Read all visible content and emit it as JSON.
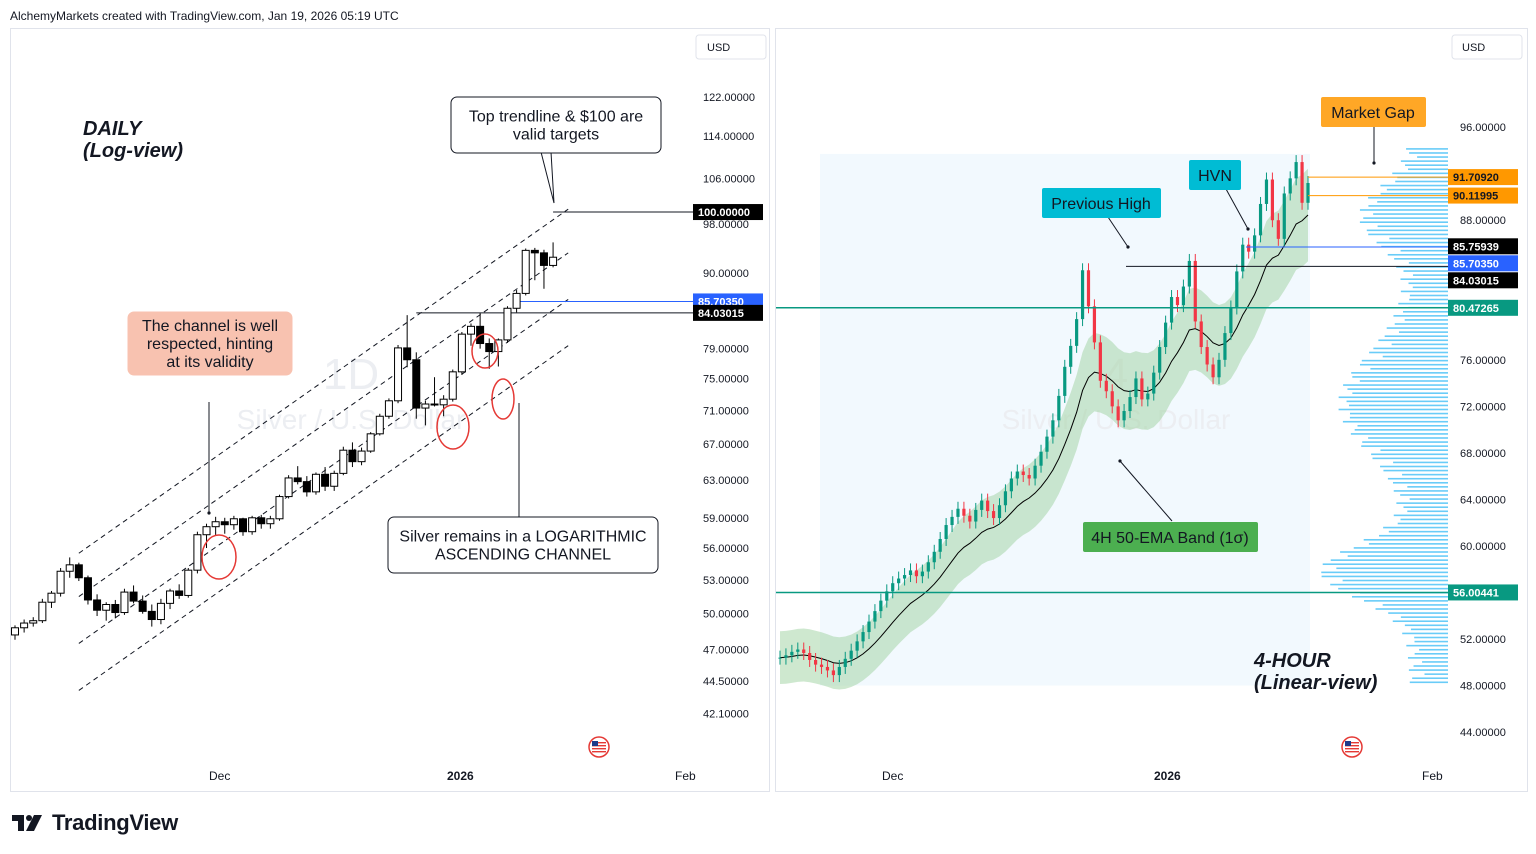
{
  "header": {
    "text": "AlchemyMarkets created with TradingView.com, Jan 19, 2026 05:19 UTC"
  },
  "footer": {
    "brand": "TradingView"
  },
  "colors": {
    "up": "#ffffff",
    "down": "#000000",
    "wick": "#000000",
    "price_blue": "#2962ff",
    "band": "#a5d6a7",
    "ema": "#000000",
    "hline_teal": "#089981",
    "profile": "#4fc3f7",
    "orange": "#ff9800",
    "teal_label": "#00bcd4",
    "callout_salmon": "#f8c2b0",
    "green_label": "#4caf50"
  },
  "chart_data": [
    {
      "id": "left",
      "type": "candlestick",
      "title": "Silver / U.S. Dollar",
      "interval_watermark": "1D",
      "scale": "log",
      "currency": "USD",
      "ylim": [
        40,
        128
      ],
      "y_ticks": [
        "122.00000",
        "114.00000",
        "106.00000",
        "98.00000",
        "90.00000",
        "79.00000",
        "75.00000",
        "71.00000",
        "67.00000",
        "63.00000",
        "59.00000",
        "56.00000",
        "53.00000",
        "50.00000",
        "47.00000",
        "44.50000",
        "42.10000"
      ],
      "x_labels": [
        "Dec",
        "2026",
        "Feb"
      ],
      "candles": [
        [
          48.2,
          49.0,
          47.8,
          48.8
        ],
        [
          48.8,
          49.5,
          48.4,
          49.2
        ],
        [
          49.2,
          49.7,
          48.9,
          49.4
        ],
        [
          49.4,
          51.3,
          49.2,
          51.0
        ],
        [
          51.0,
          52.0,
          50.5,
          51.8
        ],
        [
          51.8,
          54.1,
          51.5,
          53.8
        ],
        [
          53.8,
          55.1,
          53.2,
          54.4
        ],
        [
          54.4,
          54.6,
          52.9,
          53.2
        ],
        [
          53.2,
          53.4,
          50.8,
          51.2
        ],
        [
          51.2,
          51.7,
          49.8,
          50.3
        ],
        [
          50.3,
          51.0,
          49.4,
          50.8
        ],
        [
          50.8,
          51.2,
          49.6,
          50.1
        ],
        [
          50.1,
          52.2,
          49.9,
          51.9
        ],
        [
          51.9,
          52.5,
          50.9,
          51.1
        ],
        [
          51.1,
          51.6,
          50.0,
          50.2
        ],
        [
          50.2,
          50.8,
          48.9,
          49.5
        ],
        [
          49.5,
          51.3,
          49.1,
          50.9
        ],
        [
          50.9,
          52.2,
          50.4,
          52.0
        ],
        [
          52.0,
          52.6,
          51.3,
          51.6
        ],
        [
          51.6,
          54.1,
          51.4,
          53.9
        ],
        [
          53.9,
          57.6,
          53.6,
          57.3
        ],
        [
          57.3,
          58.4,
          56.0,
          58.1
        ],
        [
          58.1,
          59.1,
          57.2,
          58.6
        ],
        [
          58.6,
          59.0,
          57.4,
          58.3
        ],
        [
          58.3,
          59.2,
          57.8,
          58.9
        ],
        [
          58.9,
          59.0,
          57.2,
          57.6
        ],
        [
          57.6,
          59.2,
          57.3,
          59.0
        ],
        [
          59.0,
          59.3,
          57.9,
          58.4
        ],
        [
          58.4,
          59.2,
          57.9,
          58.9
        ],
        [
          58.9,
          61.4,
          58.7,
          61.2
        ],
        [
          61.2,
          63.5,
          61.0,
          63.2
        ],
        [
          63.2,
          64.5,
          62.5,
          62.8
        ],
        [
          62.8,
          63.4,
          61.2,
          61.7
        ],
        [
          61.7,
          63.8,
          61.4,
          63.6
        ],
        [
          63.6,
          64.4,
          61.8,
          62.3
        ],
        [
          62.3,
          64.0,
          61.8,
          63.7
        ],
        [
          63.7,
          66.7,
          63.5,
          66.3
        ],
        [
          66.3,
          67.2,
          64.4,
          65.0
        ],
        [
          65.0,
          66.6,
          64.6,
          66.2
        ],
        [
          66.2,
          68.4,
          66.0,
          68.2
        ],
        [
          68.2,
          70.6,
          68.0,
          70.3
        ],
        [
          70.3,
          72.5,
          70.0,
          72.2
        ],
        [
          72.2,
          79.5,
          71.9,
          79.1
        ],
        [
          79.1,
          83.7,
          76.5,
          77.5
        ],
        [
          77.5,
          78.5,
          70.0,
          71.3
        ],
        [
          71.3,
          72.2,
          69.2,
          71.8
        ],
        [
          71.8,
          75.2,
          71.5,
          71.7
        ],
        [
          71.7,
          72.9,
          70.3,
          72.4
        ],
        [
          72.4,
          76.2,
          72.1,
          75.9
        ],
        [
          75.9,
          81.3,
          75.5,
          81.0
        ],
        [
          81.0,
          82.5,
          79.4,
          82.1
        ],
        [
          82.1,
          84.0,
          79.0,
          79.7
        ],
        [
          79.7,
          80.4,
          76.3,
          78.6
        ],
        [
          78.6,
          80.4,
          76.6,
          80.2
        ],
        [
          80.2,
          85.0,
          79.8,
          84.7
        ],
        [
          84.7,
          87.4,
          84.1,
          86.9
        ],
        [
          86.9,
          93.9,
          86.6,
          93.6
        ],
        [
          93.6,
          94.0,
          88.9,
          93.2
        ],
        [
          93.2,
          93.7,
          87.6,
          91.2
        ],
        [
          91.2,
          94.9,
          90.9,
          92.5
        ]
      ],
      "levels": [
        {
          "value": 100,
          "label": "100.00000",
          "style": "black"
        },
        {
          "value": 85.7035,
          "label": "85.70350",
          "style": "blue"
        },
        {
          "value": 84.03015,
          "label": "84.03015",
          "style": "black"
        }
      ],
      "annotations": {
        "title": [
          "DAILY",
          "(Log-view)"
        ],
        "callout_top": [
          "Top trendline & $100 are",
          "valid targets"
        ],
        "callout_left": [
          "The channel is well",
          "respected, hinting",
          "at its validity"
        ],
        "callout_bottom": [
          "Silver remains in a LOGARITHMIC",
          "ASCENDING CHANNEL"
        ]
      }
    },
    {
      "id": "right",
      "type": "candlestick",
      "title": "Silver / U.S. Dollar",
      "interval_watermark": "4",
      "scale": "linear",
      "currency": "USD",
      "ylim": [
        41,
        101
      ],
      "y_ticks": [
        "96.00000",
        "88.00000",
        "76.00000",
        "72.00000",
        "68.00000",
        "64.00000",
        "60.00000",
        "52.00000",
        "48.00000",
        "44.00000"
      ],
      "x_labels": [
        "Dec",
        "2026",
        "Feb"
      ],
      "series_note": "4H close path with 50-EMA and 1-sigma band",
      "closes": [
        50.4,
        50.6,
        50.9,
        51.1,
        50.8,
        50.2,
        49.8,
        49.6,
        49.3,
        48.9,
        49.6,
        50.3,
        51.0,
        51.8,
        52.6,
        53.5,
        54.4,
        55.3,
        56.1,
        56.8,
        57.2,
        57.5,
        57.9,
        57.4,
        57.8,
        58.6,
        59.5,
        60.6,
        61.8,
        62.5,
        63.2,
        62.6,
        62.1,
        63.1,
        63.9,
        63.0,
        62.4,
        63.5,
        64.7,
        65.8,
        66.4,
        66.1,
        65.8,
        66.9,
        68.1,
        69.4,
        70.8,
        72.9,
        75.4,
        77.2,
        79.5,
        83.7,
        80.6,
        77.5,
        74.2,
        73.3,
        72.0,
        70.8,
        71.6,
        72.8,
        74.4,
        72.6,
        73.1,
        74.9,
        77.1,
        79.2,
        81.4,
        80.7,
        82.3,
        84.5,
        79.3,
        77.1,
        75.6,
        74.5,
        76.0,
        78.3,
        80.5,
        83.6,
        85.9,
        85.3,
        86.7,
        89.4,
        91.5,
        88.0,
        86.4,
        90.3,
        91.6,
        93.0,
        89.5,
        91.2
      ],
      "levels": [
        {
          "value": 91.7092,
          "label": "91.70920",
          "style": "orange"
        },
        {
          "value": 90.11995,
          "label": "90.11995",
          "style": "orange"
        },
        {
          "value": 85.75939,
          "label": "85.75939",
          "style": "black"
        },
        {
          "value": 85.7035,
          "label": "85.70350",
          "style": "blue"
        },
        {
          "value": 84.03015,
          "label": "84.03015",
          "style": "black"
        },
        {
          "value": 80.47265,
          "label": "80.47265",
          "style": "teal"
        },
        {
          "value": 56.00441,
          "label": "56.00441",
          "style": "teal"
        }
      ],
      "annotations": {
        "market_gap": "Market Gap",
        "hvn": "HVN",
        "previous_high": "Previous High",
        "band_label": "4H 50-EMA Band (1σ)",
        "title": [
          "4-HOUR",
          "(Linear-view)"
        ]
      }
    }
  ]
}
